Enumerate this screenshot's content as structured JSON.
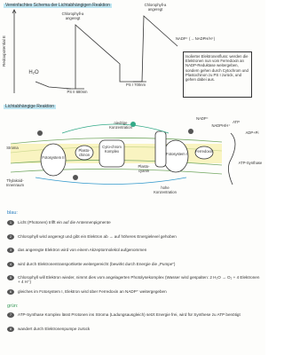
{
  "header": {
    "title": "Vereinfachtes Schema der Lichtabhängigen Reaktion"
  },
  "energy_diagram": {
    "axis_label": "Redoxpotential E",
    "chlorophyll_ps2": "Chlorophyll-a angeregt",
    "chlorophyll_ps1": "Chlorophyll-a angeregt",
    "water": "H₂O",
    "ps2": "PS II 680nm",
    "ps1": "PS I 700nm",
    "nadp": "NADP⁺ (→ NADPH/H⁺)"
  },
  "note_box": {
    "text": "Isolierter Elektronenfluss: werden die Elektronen nun vom Ferredoxin an NADP-Reduktase weitergeben, sondern gehen durch Cytochrom und Plastochinon zu PS I zurück, und gehen dabei aus."
  },
  "section_title": "Lichtabhängige Reaktion",
  "membrane_diagram": {
    "stroma": "Stroma",
    "lumen": "Thylakoid-Innenraum",
    "low": "niedrige Konzentration",
    "high": "hohe Konzentration",
    "plastoquinone": "Plasto-chinon",
    "cytochrome": "Cyto-chrom Komplex",
    "plastocyanin": "Plasto-cyanin",
    "ferredoxin": "Ferredoxin",
    "ps2": "Fotosystem II",
    "ps1": "Fotosystem I",
    "atp": "ATP",
    "adp": "ADP+Pi",
    "synthase": "ATP-Synthase",
    "nadp": "NADP⁺",
    "nadph": "NADPH/H⁺"
  },
  "legend_blue": "blau:",
  "steps_blue": [
    {
      "number": "1",
      "text": "Licht (Photonen) trifft ein auf die Antennenpigmente"
    },
    {
      "number": "2",
      "text": "Chlorophyll wird angeregt und gibt ein Elektron ab → auf höheres Energielevel gehoben"
    },
    {
      "number": "3",
      "text": "das angeregte Elektron wird von einem Akzeptormolekül aufgenommen"
    },
    {
      "number": "4",
      "text": "wird durch Elektronentransportkette weitergereicht (bewirkt durch Energie die „Pumpe“)"
    },
    {
      "number": "5",
      "text": "Chlorophyll will Elektron wieder, nimmt dies vom angelagerten Photolysekomplex (Wasser wird gespalten: 2 H₂O → O₂ + 4 Elektronen + 4 H⁺)"
    },
    {
      "number": "6",
      "text": "gleiches im Fotosystem I, Elektron wird über Ferredoxin an NADP⁺ weitergegeben"
    }
  ],
  "legend_green": "grün:",
  "steps_green": [
    {
      "number": "7",
      "text": "ATP-Synthase Komplex lässt Protonen ins Stroma (Ladungsausgleich) setzt Energie frei, wird für Synthese zu ATP benötigt"
    },
    {
      "number": "8",
      "text": "wandert durch Elektronenpumpe zurück"
    }
  ]
}
